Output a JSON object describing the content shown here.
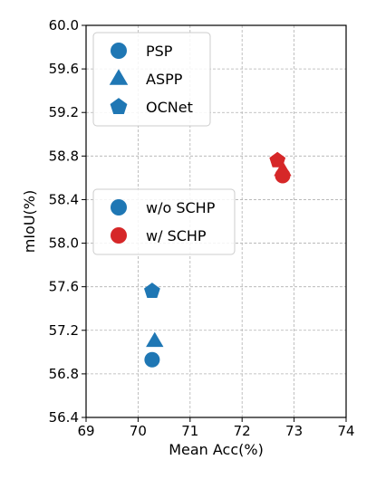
{
  "chart_data": {
    "type": "scatter",
    "title": "",
    "xlabel": "Mean Acc(%)",
    "ylabel": "mIoU(%)",
    "xlim": [
      69,
      74
    ],
    "ylim": [
      56.4,
      60.0
    ],
    "xticks": [
      69,
      70,
      71,
      72,
      73,
      74
    ],
    "yticks": [
      56.4,
      56.8,
      57.2,
      57.6,
      58.0,
      58.4,
      58.8,
      59.2,
      59.6,
      60.0
    ],
    "grid": true,
    "colors": {
      "without_schp": "#1f77b4",
      "with_schp": "#d62728"
    },
    "points": [
      {
        "method": "PSP",
        "schp": false,
        "x": 70.27,
        "y": 56.93,
        "marker": "circle"
      },
      {
        "method": "ASPP",
        "schp": false,
        "x": 70.32,
        "y": 57.1,
        "marker": "triangle"
      },
      {
        "method": "OCNet",
        "schp": false,
        "x": 70.27,
        "y": 57.56,
        "marker": "pentagon"
      },
      {
        "method": "OCNet",
        "schp": true,
        "x": 72.68,
        "y": 58.76,
        "marker": "pentagon"
      },
      {
        "method": "ASPP",
        "schp": true,
        "x": 72.78,
        "y": 58.67,
        "marker": "triangle"
      },
      {
        "method": "PSP",
        "schp": true,
        "x": 72.78,
        "y": 58.62,
        "marker": "circle"
      }
    ],
    "legends": [
      {
        "position": "upper-left",
        "entries": [
          {
            "label": "PSP",
            "marker": "circle",
            "color": "#1f77b4"
          },
          {
            "label": "ASPP",
            "marker": "triangle",
            "color": "#1f77b4"
          },
          {
            "label": "OCNet",
            "marker": "pentagon",
            "color": "#1f77b4"
          }
        ]
      },
      {
        "position": "center-left",
        "entries": [
          {
            "label": "w/o SCHP",
            "marker": "circle",
            "color": "#1f77b4"
          },
          {
            "label": "w/ SCHP",
            "marker": "circle",
            "color": "#d62728"
          }
        ]
      }
    ]
  }
}
